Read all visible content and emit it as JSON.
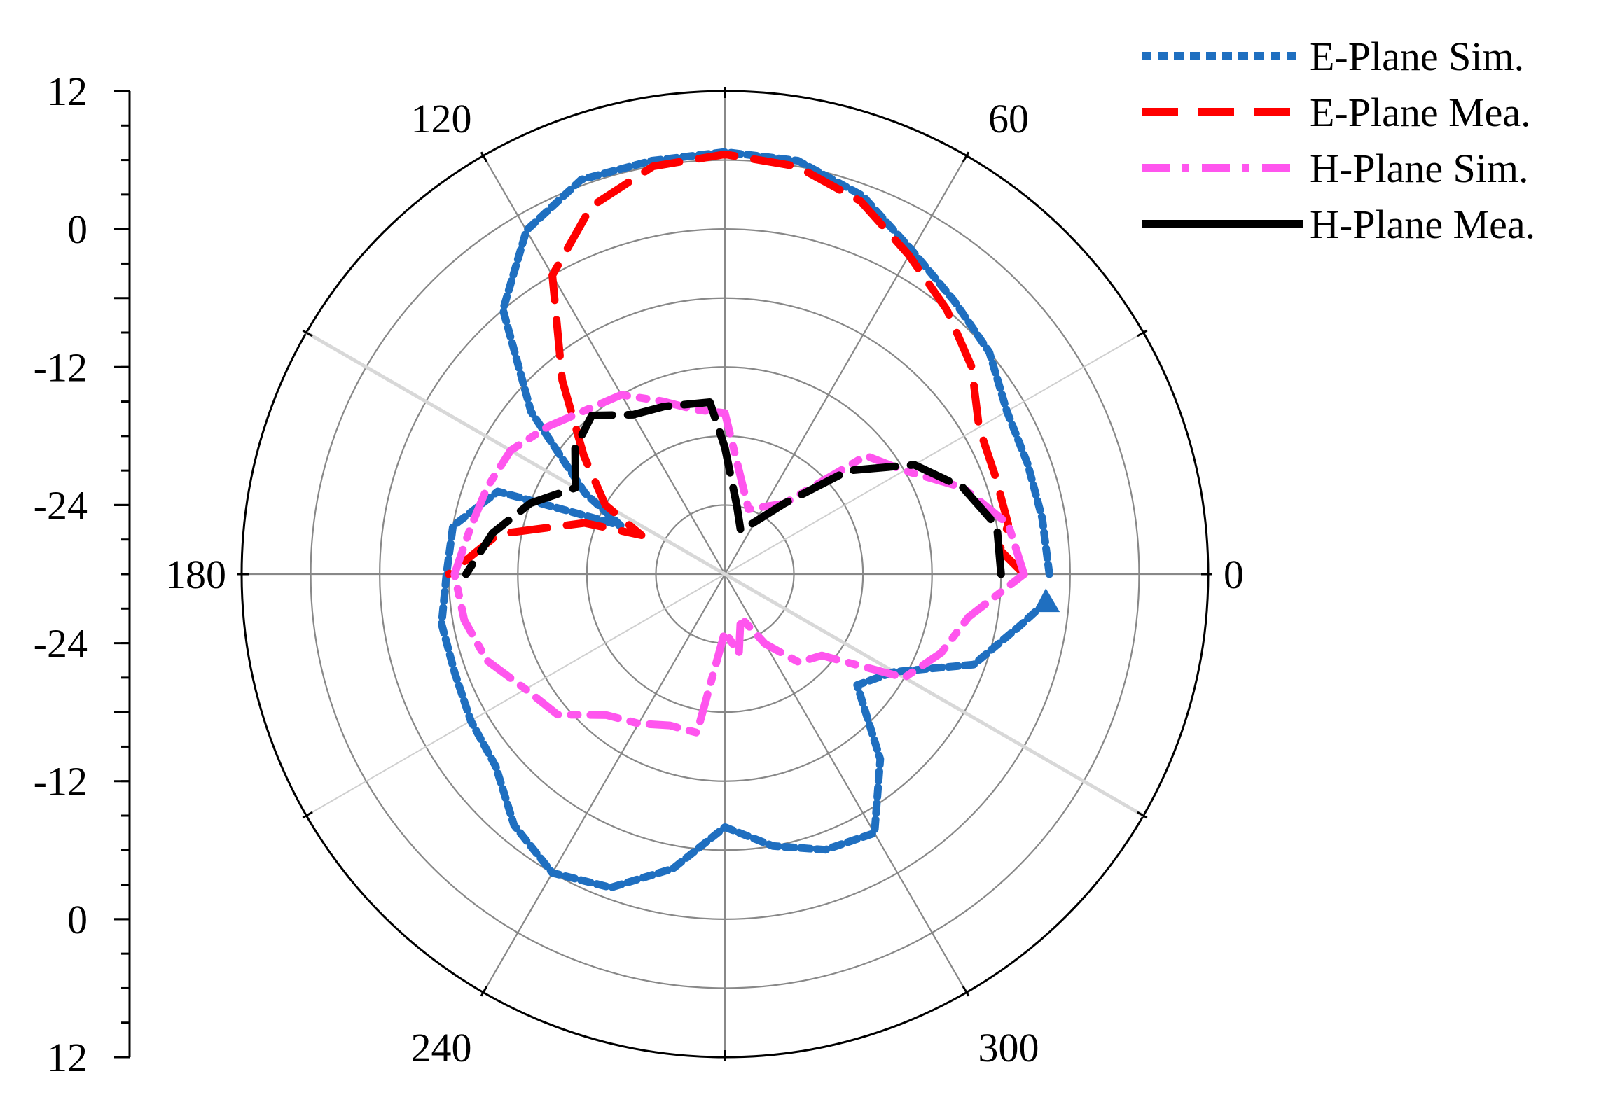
{
  "chart_data": {
    "type": "polar-line",
    "title": "",
    "radial_axis": {
      "ticks_upper": [
        "12",
        "0",
        "-12",
        "-24"
      ],
      "ticks_lower": [
        "-24",
        "-12",
        "0",
        "12"
      ],
      "min": -30,
      "max": 12,
      "ring_step": 6
    },
    "angle_axis": {
      "spokes_deg": [
        0,
        30,
        60,
        90,
        120,
        150,
        180,
        210,
        240,
        270,
        300,
        330
      ],
      "labels": [
        {
          "deg": 0,
          "text": "0"
        },
        {
          "deg": 60,
          "text": "60"
        },
        {
          "deg": 120,
          "text": "120"
        },
        {
          "deg": 180,
          "text": "180"
        },
        {
          "deg": 240,
          "text": "240"
        },
        {
          "deg": 300,
          "text": "300"
        }
      ]
    },
    "legend_position": "top-right",
    "series": [
      {
        "name": "E-Plane Sim.",
        "color": "#1f6fc0",
        "dash": "dotted",
        "points": [
          [
            0,
            -1.8
          ],
          [
            10,
            -2
          ],
          [
            20,
            -2
          ],
          [
            30,
            -1.7
          ],
          [
            40,
            0
          ],
          [
            50,
            1
          ],
          [
            60,
            2.5
          ],
          [
            70,
            5
          ],
          [
            80,
            6.5
          ],
          [
            90,
            6.7
          ],
          [
            100,
            6.5
          ],
          [
            110,
            6.5
          ],
          [
            120,
            4.5
          ],
          [
            130,
            0
          ],
          [
            140,
            -8
          ],
          [
            150,
            -16
          ],
          [
            155,
            -20
          ],
          [
            160,
            -9
          ],
          [
            170,
            -6
          ],
          [
            180,
            -5.8
          ],
          [
            190,
            -5
          ],
          [
            200,
            -5
          ],
          [
            210,
            -4.5
          ],
          [
            220,
            -4
          ],
          [
            230,
            -1.5
          ],
          [
            240,
            0
          ],
          [
            250,
            -1
          ],
          [
            260,
            -4
          ],
          [
            270,
            -8
          ],
          [
            280,
            -6
          ],
          [
            290,
            -4.5
          ],
          [
            300,
            -4
          ],
          [
            310,
            -9
          ],
          [
            320,
            -15
          ],
          [
            330,
            -13
          ],
          [
            340,
            -7
          ],
          [
            350,
            -4
          ],
          [
            355,
            -2
          ]
        ]
      },
      {
        "name": "E-Plane Mea.",
        "color": "#ff0000",
        "dash": "dashed",
        "points": [
          [
            0,
            -4
          ],
          [
            5,
            -6
          ],
          [
            10,
            -5
          ],
          [
            20,
            -5
          ],
          [
            30,
            -4.5
          ],
          [
            40,
            -2
          ],
          [
            50,
            0
          ],
          [
            60,
            2
          ],
          [
            70,
            4.5
          ],
          [
            80,
            6
          ],
          [
            90,
            6.5
          ],
          [
            100,
            6
          ],
          [
            110,
            4
          ],
          [
            120,
            0
          ],
          [
            130,
            -8
          ],
          [
            140,
            -14
          ],
          [
            150,
            -18
          ],
          [
            155,
            -22
          ],
          [
            160,
            -17
          ],
          [
            170,
            -10
          ],
          [
            180,
            -6
          ]
        ]
      },
      {
        "name": "H-Plane Sim.",
        "color": "#ff55ee",
        "dash": "dash-dot",
        "points": [
          [
            0,
            -4
          ],
          [
            10,
            -5
          ],
          [
            20,
            -8
          ],
          [
            30,
            -12
          ],
          [
            40,
            -14
          ],
          [
            50,
            -22
          ],
          [
            70,
            -24
          ],
          [
            90,
            -16
          ],
          [
            100,
            -15.5
          ],
          [
            110,
            -14
          ],
          [
            120,
            -12
          ],
          [
            140,
            -10
          ],
          [
            150,
            -8.5
          ],
          [
            160,
            -8
          ],
          [
            170,
            -7.5
          ],
          [
            180,
            -6.5
          ],
          [
            190,
            -7
          ],
          [
            200,
            -8
          ],
          [
            210,
            -10
          ],
          [
            220,
            -11
          ],
          [
            230,
            -14
          ],
          [
            240,
            -15
          ],
          [
            250,
            -16
          ],
          [
            260,
            -16
          ],
          [
            270,
            -25
          ],
          [
            280,
            -23
          ],
          [
            290,
            -26
          ],
          [
            300,
            -23
          ],
          [
            310,
            -20
          ],
          [
            320,
            -19
          ],
          [
            330,
            -12
          ],
          [
            340,
            -10
          ],
          [
            350,
            -8.5
          ],
          [
            360,
            -4
          ]
        ]
      },
      {
        "name": "H-Plane Mea.",
        "color": "#000000",
        "dash": "solid",
        "points": [
          [
            0,
            -6
          ],
          [
            10,
            -6
          ],
          [
            20,
            -8
          ],
          [
            30,
            -11
          ],
          [
            40,
            -16
          ],
          [
            50,
            -22
          ],
          [
            70,
            -26
          ],
          [
            80,
            -24
          ],
          [
            90,
            -19
          ],
          [
            95,
            -15
          ],
          [
            110,
            -14.5
          ],
          [
            120,
            -14
          ],
          [
            130,
            -12
          ],
          [
            140,
            -13
          ],
          [
            150,
            -15
          ],
          [
            160,
            -12
          ],
          [
            170,
            -9.5
          ],
          [
            180,
            -7.5
          ]
        ]
      }
    ]
  }
}
